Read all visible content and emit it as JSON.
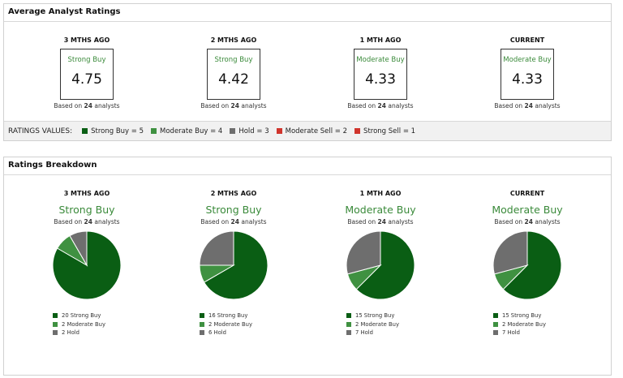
{
  "colors": {
    "strong_buy": "#0a5e14",
    "moderate_buy": "#3f9141",
    "hold": "#6e6e6e",
    "moderate_sell": "#d0342c",
    "strong_sell": "#d0342c",
    "rating_text": "#3a8a3a"
  },
  "average_ratings": {
    "title": "Average Analyst Ratings",
    "periods": [
      {
        "title": "3 MTHS AGO",
        "rating": "Strong Buy",
        "value": "4.75",
        "based_prefix": "Based on",
        "analysts": "24",
        "based_suffix": "analysts"
      },
      {
        "title": "2 MTHS AGO",
        "rating": "Strong Buy",
        "value": "4.42",
        "based_prefix": "Based on",
        "analysts": "24",
        "based_suffix": "analysts"
      },
      {
        "title": "1 MTH AGO",
        "rating": "Moderate Buy",
        "value": "4.33",
        "based_prefix": "Based on",
        "analysts": "24",
        "based_suffix": "analysts"
      },
      {
        "title": "CURRENT",
        "rating": "Moderate Buy",
        "value": "4.33",
        "based_prefix": "Based on",
        "analysts": "24",
        "based_suffix": "analysts"
      }
    ],
    "legend": {
      "title": "RATINGS VALUES:",
      "items": [
        {
          "label": "Strong Buy = 5",
          "color": "#0a5e14"
        },
        {
          "label": "Moderate Buy = 4",
          "color": "#3f9141"
        },
        {
          "label": "Hold = 3",
          "color": "#6e6e6e"
        },
        {
          "label": "Moderate Sell = 2",
          "color": "#d0342c"
        },
        {
          "label": "Strong Sell = 1",
          "color": "#d0342c"
        }
      ]
    }
  },
  "breakdown": {
    "title": "Ratings Breakdown",
    "periods": [
      {
        "title": "3 MTHS AGO",
        "rating": "Strong Buy",
        "based_prefix": "Based on",
        "analysts": "24",
        "based_suffix": "analysts",
        "slices": [
          {
            "label": "20 Strong Buy",
            "count": 20,
            "color": "#0a5e14"
          },
          {
            "label": "2 Moderate Buy",
            "count": 2,
            "color": "#3f9141"
          },
          {
            "label": "2 Hold",
            "count": 2,
            "color": "#6e6e6e"
          }
        ]
      },
      {
        "title": "2 MTHS AGO",
        "rating": "Strong Buy",
        "based_prefix": "Based on",
        "analysts": "24",
        "based_suffix": "analysts",
        "slices": [
          {
            "label": "16 Strong Buy",
            "count": 16,
            "color": "#0a5e14"
          },
          {
            "label": "2 Moderate Buy",
            "count": 2,
            "color": "#3f9141"
          },
          {
            "label": "6 Hold",
            "count": 6,
            "color": "#6e6e6e"
          }
        ]
      },
      {
        "title": "1 MTH AGO",
        "rating": "Moderate Buy",
        "based_prefix": "Based on",
        "analysts": "24",
        "based_suffix": "analysts",
        "slices": [
          {
            "label": "15 Strong Buy",
            "count": 15,
            "color": "#0a5e14"
          },
          {
            "label": "2 Moderate Buy",
            "count": 2,
            "color": "#3f9141"
          },
          {
            "label": "7 Hold",
            "count": 7,
            "color": "#6e6e6e"
          }
        ]
      },
      {
        "title": "CURRENT",
        "rating": "Moderate Buy",
        "based_prefix": "Based on",
        "analysts": "24",
        "based_suffix": "analysts",
        "slices": [
          {
            "label": "15 Strong Buy",
            "count": 15,
            "color": "#0a5e14"
          },
          {
            "label": "2 Moderate Buy",
            "count": 2,
            "color": "#3f9141"
          },
          {
            "label": "7 Hold",
            "count": 7,
            "color": "#6e6e6e"
          }
        ]
      }
    ]
  }
}
